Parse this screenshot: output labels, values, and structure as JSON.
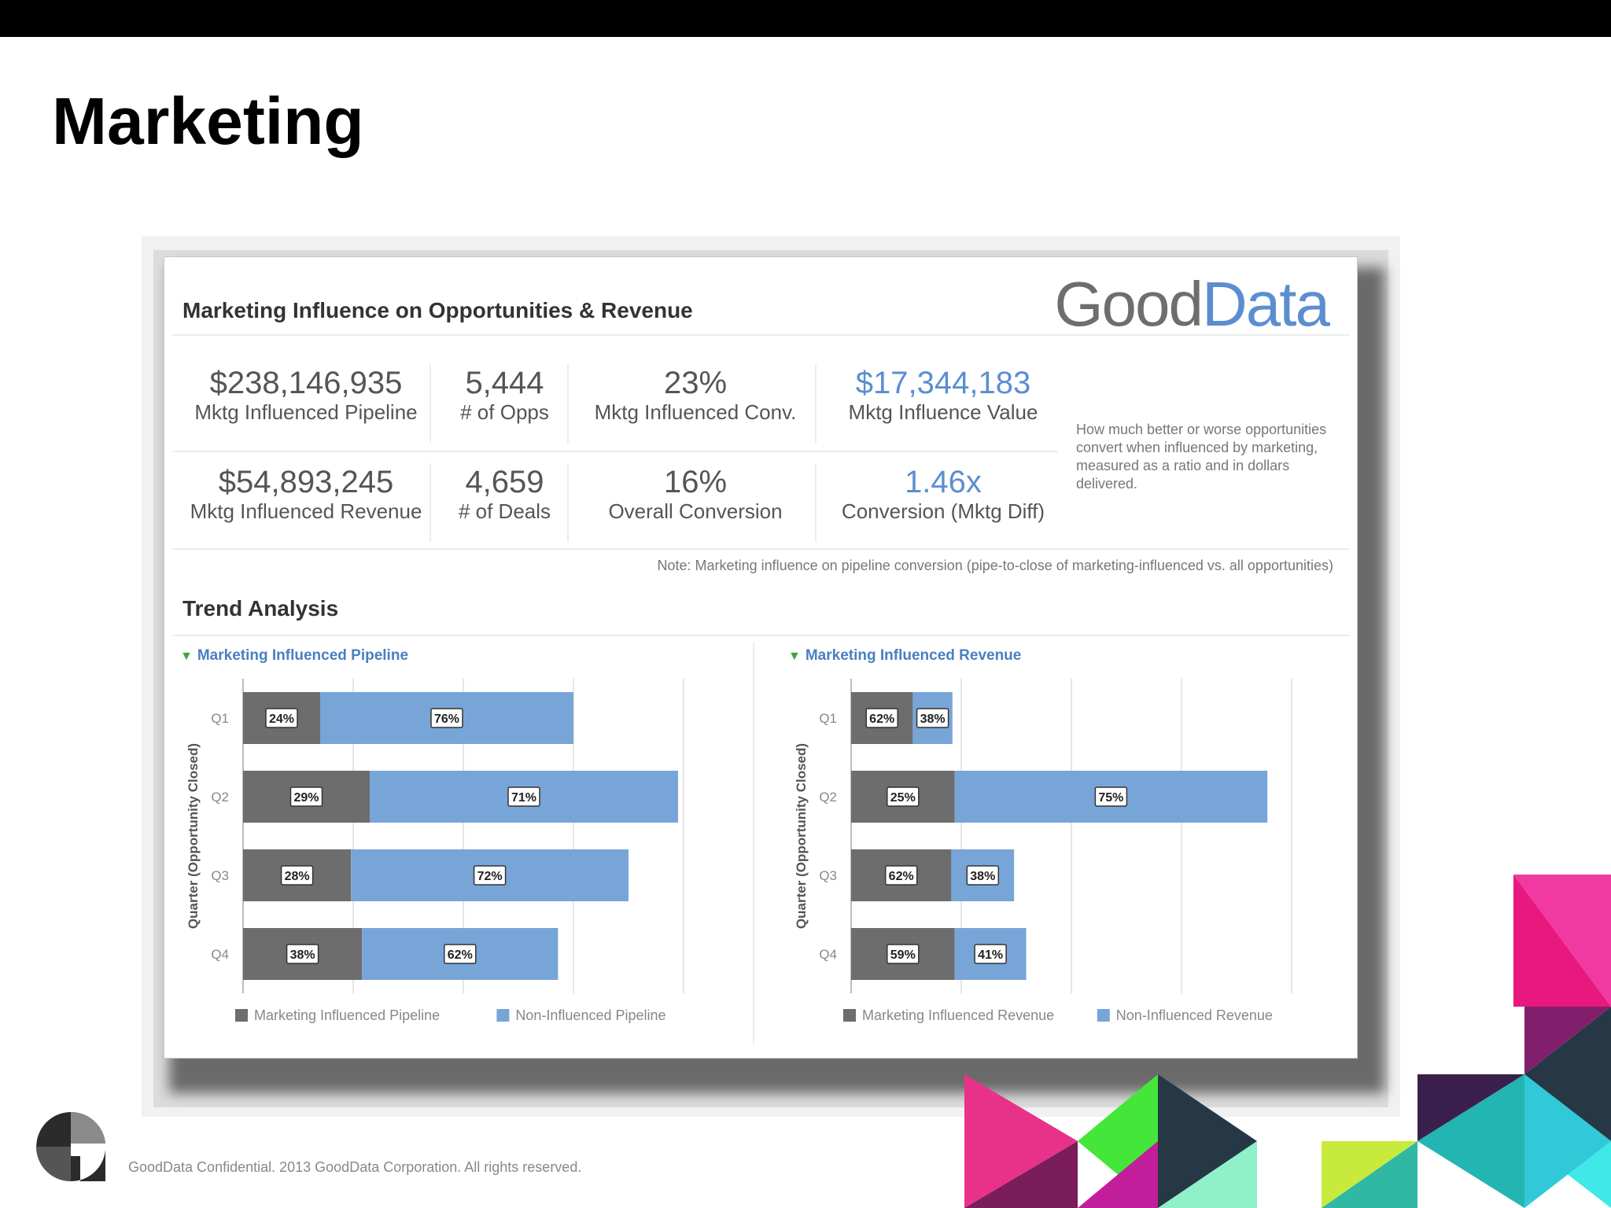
{
  "slide": {
    "title": "Marketing",
    "footer": "GoodData Confidential. 2013 GoodData Corporation. All rights reserved."
  },
  "card": {
    "title": "Marketing Influence on Opportunities & Revenue",
    "logo": {
      "part1": "Good",
      "part2": "Data"
    },
    "metrics": {
      "pipeline": {
        "value": "$238,146,935",
        "label": "Mktg Influenced Pipeline"
      },
      "opps": {
        "value": "5,444",
        "label": "# of Opps"
      },
      "conv": {
        "value": "23%",
        "label": "Mktg Influenced Conv."
      },
      "influence_value": {
        "value": "$17,344,183",
        "label": "Mktg Influence Value"
      },
      "revenue": {
        "value": "$54,893,245",
        "label": "Mktg Influenced Revenue"
      },
      "deals": {
        "value": "4,659",
        "label": "# of Deals"
      },
      "overall_conv": {
        "value": "16%",
        "label": "Overall Conversion"
      },
      "diff": {
        "value": "1.46x",
        "label": "Conversion (Mktg Diff)"
      }
    },
    "metric_note": "How much better or worse opportunities convert when influenced by marketing, measured as a ratio and in dollars delivered.",
    "bottom_note": "Note: Marketing influence on pipeline conversion (pipe-to-close of marketing-influenced vs. all opportunities)",
    "trend_title": "Trend Analysis",
    "colors": {
      "influenced": "#6d6d6d",
      "non_influenced": "#78a5d8",
      "accent": "#5b8ed1"
    }
  },
  "chart_data": [
    {
      "type": "bar",
      "orientation": "horizontal",
      "stacked": true,
      "title": "Marketing Influenced Pipeline",
      "ylabel": "Quarter (Opportunity Closed)",
      "categories": [
        "Q1",
        "Q2",
        "Q3",
        "Q4"
      ],
      "series": [
        {
          "name": "Marketing Influenced Pipeline",
          "color": "#6d6d6d",
          "values": [
            24,
            29,
            28,
            38
          ],
          "labels": [
            "24%",
            "29%",
            "28%",
            "38%"
          ],
          "lengths": [
            0.7,
            1.15,
            0.98,
            1.08
          ]
        },
        {
          "name": "Non-Influenced Pipeline",
          "color": "#78a5d8",
          "values": [
            76,
            71,
            72,
            62
          ],
          "labels": [
            "76%",
            "71%",
            "72%",
            "62%"
          ],
          "lengths": [
            2.3,
            2.8,
            2.52,
            1.78
          ]
        }
      ],
      "grid": true,
      "legend": "bottom"
    },
    {
      "type": "bar",
      "orientation": "horizontal",
      "stacked": true,
      "title": "Marketing Influenced Revenue",
      "ylabel": "Quarter (Opportunity Closed)",
      "categories": [
        "Q1",
        "Q2",
        "Q3",
        "Q4"
      ],
      "series": [
        {
          "name": "Marketing Influenced Revenue",
          "color": "#6d6d6d",
          "values": [
            62,
            25,
            62,
            59
          ],
          "labels": [
            "62%",
            "25%",
            "62%",
            "59%"
          ],
          "lengths": [
            0.56,
            0.94,
            0.91,
            0.94
          ]
        },
        {
          "name": "Non-Influenced Revenue",
          "color": "#78a5d8",
          "values": [
            38,
            75,
            38,
            41
          ],
          "labels": [
            "38%",
            "75%",
            "38%",
            "41%"
          ],
          "lengths": [
            0.36,
            2.84,
            0.57,
            0.65
          ]
        }
      ],
      "grid": true,
      "legend": "bottom"
    }
  ]
}
